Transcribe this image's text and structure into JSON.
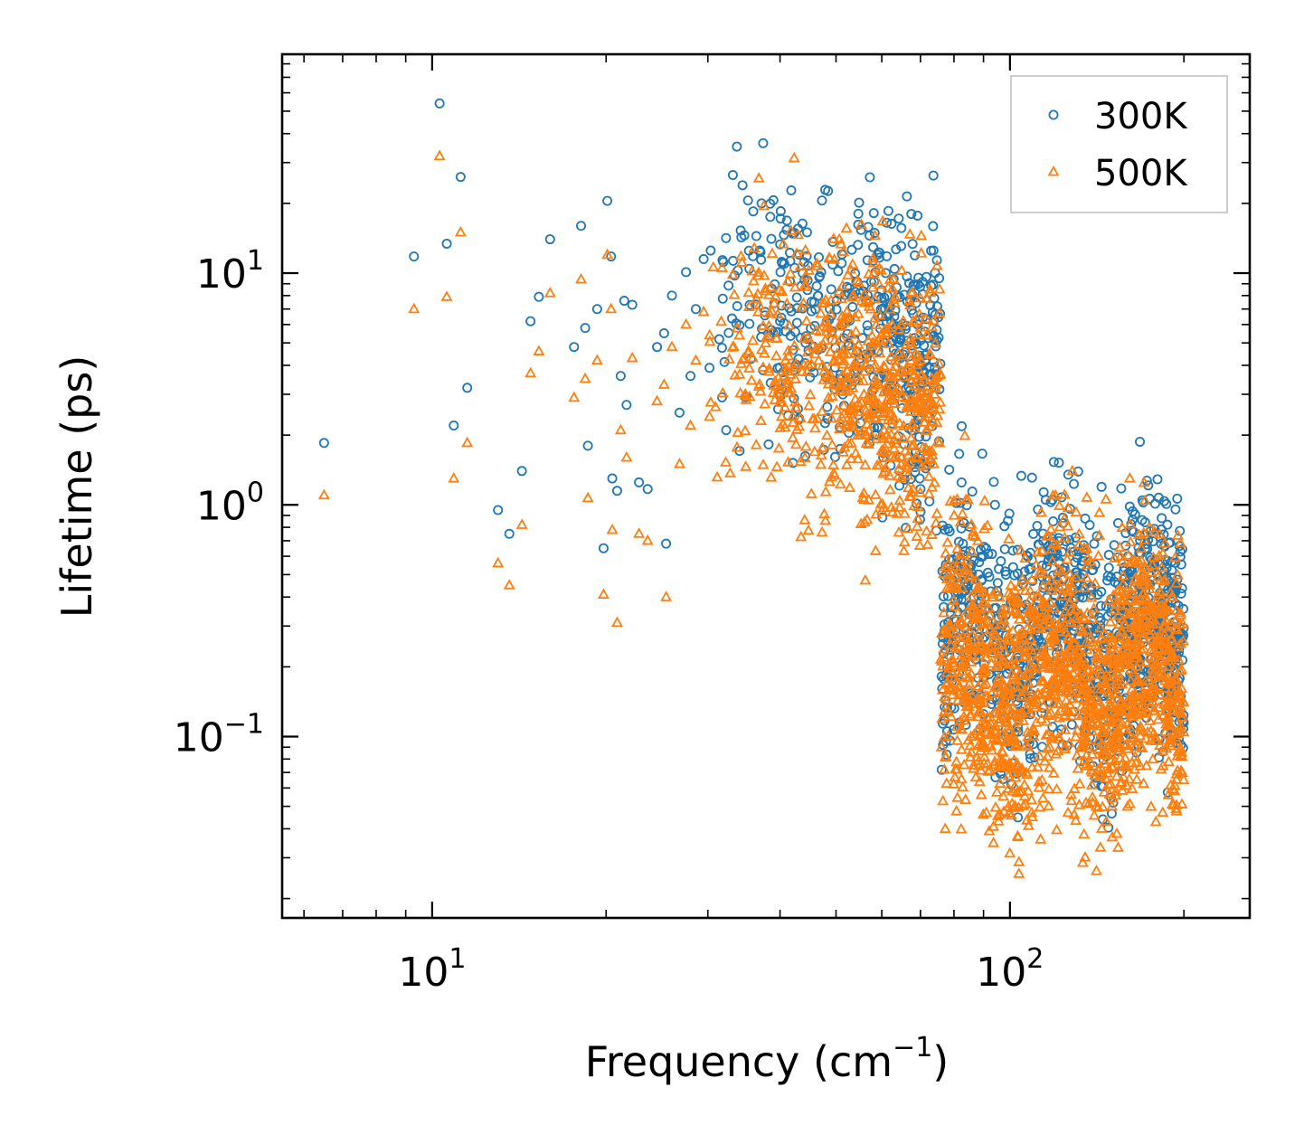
{
  "chart_data": {
    "type": "scatter",
    "title": "",
    "xlabel": "Frequency (cm",
    "xlabel_superscript": "−1",
    "xlabel_close": ")",
    "ylabel": "Lifetime (ps)",
    "xscale": "log",
    "yscale": "log",
    "xlim": [
      5.5,
      260
    ],
    "ylim": [
      0.0165,
      88
    ],
    "xticks": [
      {
        "value": 10,
        "base": "10",
        "exp": "1"
      },
      {
        "value": 100,
        "base": "10",
        "exp": "2"
      }
    ],
    "yticks": [
      {
        "value": 0.1,
        "base": "10",
        "exp": "−1"
      },
      {
        "value": 1,
        "base": "10",
        "exp": "0"
      },
      {
        "value": 10,
        "base": "10",
        "exp": "1"
      }
    ],
    "legend_position": "top-right",
    "series": [
      {
        "name": "300K",
        "marker": "circle",
        "color": "#1f77b4",
        "points": [
          [
            6.5,
            1.85
          ],
          [
            9.3,
            11.8
          ],
          [
            10.3,
            54
          ],
          [
            10.6,
            13.4
          ],
          [
            10.9,
            2.2
          ],
          [
            11.2,
            26
          ],
          [
            11.5,
            3.2
          ],
          [
            13.0,
            0.95
          ],
          [
            13.6,
            0.75
          ],
          [
            14.3,
            1.4
          ],
          [
            14.8,
            6.2
          ],
          [
            15.3,
            7.9
          ],
          [
            16.0,
            14.0
          ],
          [
            17.6,
            4.8
          ],
          [
            18.1,
            16.0
          ],
          [
            18.4,
            5.8
          ],
          [
            18.6,
            1.8
          ],
          [
            19.3,
            7.0
          ],
          [
            19.8,
            0.65
          ],
          [
            20.1,
            20.5
          ],
          [
            20.4,
            11.8
          ],
          [
            20.5,
            1.3
          ],
          [
            20.9,
            1.15
          ],
          [
            21.2,
            3.6
          ],
          [
            21.5,
            7.6
          ],
          [
            21.7,
            2.7
          ],
          [
            22.2,
            7.3
          ],
          [
            22.8,
            1.25
          ],
          [
            23.6,
            1.17
          ],
          [
            24.5,
            4.8
          ],
          [
            25.2,
            5.5
          ],
          [
            25.4,
            0.68
          ],
          [
            26.0,
            8.0
          ],
          [
            26.8,
            2.5
          ],
          [
            27.5,
            10.1
          ],
          [
            28.0,
            3.6
          ],
          [
            28.6,
            7.0
          ],
          [
            29.5,
            11.5
          ],
          [
            30.2,
            3.9
          ]
        ]
      },
      {
        "name": "500K",
        "marker": "triangle",
        "color": "#ff7f0e",
        "points": [
          [
            6.5,
            1.1
          ],
          [
            9.3,
            7.0
          ],
          [
            10.3,
            32
          ],
          [
            10.6,
            7.9
          ],
          [
            10.9,
            1.3
          ],
          [
            11.2,
            15.0
          ],
          [
            11.5,
            1.85
          ],
          [
            13.0,
            0.56
          ],
          [
            13.6,
            0.45
          ],
          [
            14.3,
            0.82
          ],
          [
            14.8,
            3.7
          ],
          [
            15.3,
            4.6
          ],
          [
            16.0,
            8.2
          ],
          [
            17.6,
            2.9
          ],
          [
            18.1,
            9.4
          ],
          [
            18.4,
            3.5
          ],
          [
            18.6,
            1.07
          ],
          [
            19.3,
            4.2
          ],
          [
            19.8,
            0.41
          ],
          [
            20.1,
            12.0
          ],
          [
            20.4,
            7.0
          ],
          [
            20.5,
            0.78
          ],
          [
            20.9,
            0.31
          ],
          [
            21.2,
            2.1
          ],
          [
            21.7,
            1.6
          ],
          [
            22.2,
            4.3
          ],
          [
            22.8,
            0.75
          ],
          [
            23.6,
            0.7
          ],
          [
            24.5,
            2.8
          ],
          [
            25.2,
            3.3
          ],
          [
            25.4,
            0.4
          ],
          [
            26.0,
            4.8
          ],
          [
            26.8,
            1.5
          ],
          [
            27.5,
            6.0
          ],
          [
            28.0,
            2.2
          ],
          [
            28.6,
            4.2
          ],
          [
            29.5,
            6.8
          ],
          [
            30.2,
            2.4
          ]
        ]
      }
    ]
  }
}
